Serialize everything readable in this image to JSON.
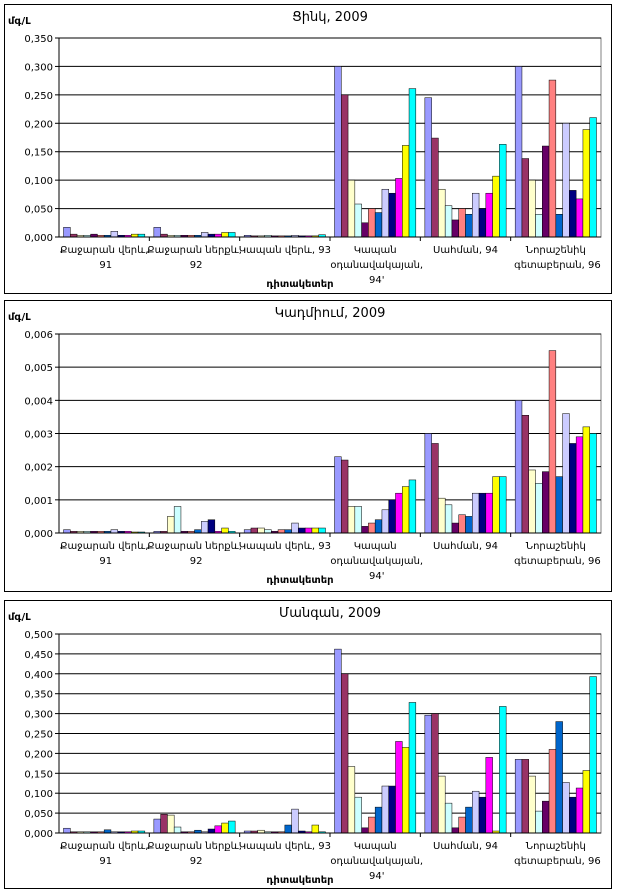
{
  "chart_data": [
    {
      "type": "bar",
      "title": "Ցինկ, 2009",
      "y_label": "մգ/Լ",
      "x_label": "դիտակետեր",
      "categories": [
        "Քաջարան վերև, 91",
        "Քաջարան ներքև, 92",
        "Կապան վերև, 93",
        "Կապան օդանավակայան, 94'",
        "Սահման, 94",
        "Նորաշենիկ գետաբերան, 96"
      ],
      "ylim": [
        0,
        0.35
      ],
      "yticks": [
        {
          "value": 0,
          "label": "0,000"
        },
        {
          "value": 0.05,
          "label": "0,050"
        },
        {
          "value": 0.1,
          "label": "0,100"
        },
        {
          "value": 0.15,
          "label": "0,150"
        },
        {
          "value": 0.2,
          "label": "0,200"
        },
        {
          "value": 0.25,
          "label": "0,250"
        },
        {
          "value": 0.3,
          "label": "0,300"
        },
        {
          "value": 0.35,
          "label": "0,350"
        }
      ],
      "grid": true,
      "series": [
        {
          "color": "#9999FF",
          "values": [
            0.017,
            0.017,
            0.003,
            0.3,
            0.245,
            0.3
          ]
        },
        {
          "color": "#993366",
          "values": [
            0.005,
            0.005,
            0.002,
            0.25,
            0.174,
            0.138
          ]
        },
        {
          "color": "#FFFFCC",
          "values": [
            0.003,
            0.003,
            0.002,
            0.1,
            0.084,
            0.1
          ]
        },
        {
          "color": "#CCFFFF",
          "values": [
            0.003,
            0.003,
            0.003,
            0.058,
            0.055,
            0.04
          ]
        },
        {
          "color": "#660066",
          "values": [
            0.005,
            0.003,
            0.002,
            0.025,
            0.03,
            0.16
          ]
        },
        {
          "color": "#FF8080",
          "values": [
            0.003,
            0.003,
            0.002,
            0.05,
            0.05,
            0.276
          ]
        },
        {
          "color": "#0066CC",
          "values": [
            0.003,
            0.003,
            0.002,
            0.043,
            0.04,
            0.04
          ]
        },
        {
          "color": "#CCCCFF",
          "values": [
            0.01,
            0.008,
            0.003,
            0.084,
            0.077,
            0.2
          ]
        },
        {
          "color": "#000080",
          "values": [
            0.003,
            0.005,
            0.002,
            0.077,
            0.05,
            0.082
          ]
        },
        {
          "color": "#FF00FF",
          "values": [
            0.003,
            0.005,
            0.002,
            0.103,
            0.077,
            0.067
          ]
        },
        {
          "color": "#FFFF00",
          "values": [
            0.005,
            0.008,
            0.002,
            0.161,
            0.107,
            0.189
          ]
        },
        {
          "color": "#00FFFF",
          "values": [
            0.005,
            0.008,
            0.004,
            0.261,
            0.163,
            0.21
          ]
        }
      ]
    },
    {
      "type": "bar",
      "title": "Կադմիում, 2009",
      "y_label": "մգ/Լ",
      "x_label": "դիտակետեր",
      "categories": [
        "Քաջարան վերև, 91",
        "Քաջարան ներքև, 92",
        "Կապան վերև, 93",
        "Կապան օդանավակայան, 94'",
        "Սահման, 94",
        "Նորաշենիկ գետաբերան, 96"
      ],
      "ylim": [
        0,
        0.006
      ],
      "yticks": [
        {
          "value": 0,
          "label": "0,000"
        },
        {
          "value": 0.001,
          "label": "0,001"
        },
        {
          "value": 0.002,
          "label": "0,002"
        },
        {
          "value": 0.003,
          "label": "0,003"
        },
        {
          "value": 0.004,
          "label": "0,004"
        },
        {
          "value": 0.005,
          "label": "0,005"
        },
        {
          "value": 0.006,
          "label": "0,006"
        }
      ],
      "grid": true,
      "series": [
        {
          "color": "#9999FF",
          "values": [
            0.0001,
            5e-05,
            0.0001,
            0.0023,
            0.003,
            0.004
          ]
        },
        {
          "color": "#993366",
          "values": [
            5e-05,
            5e-05,
            0.00015,
            0.0022,
            0.0027,
            0.00355
          ]
        },
        {
          "color": "#FFFFCC",
          "values": [
            5e-05,
            0.0005,
            0.00015,
            0.0008,
            0.00105,
            0.0019
          ]
        },
        {
          "color": "#CCFFFF",
          "values": [
            5e-05,
            0.0008,
            0.0001,
            0.0008,
            0.00085,
            0.0015
          ]
        },
        {
          "color": "#660066",
          "values": [
            5e-05,
            5e-05,
            5e-05,
            0.0002,
            0.0003,
            0.00185
          ]
        },
        {
          "color": "#FF8080",
          "values": [
            5e-05,
            5e-05,
            0.0001,
            0.0003,
            0.00055,
            0.0055
          ]
        },
        {
          "color": "#0066CC",
          "values": [
            5e-05,
            0.0001,
            0.0001,
            0.0004,
            0.0005,
            0.0017
          ]
        },
        {
          "color": "#CCCCFF",
          "values": [
            0.0001,
            0.00035,
            0.0003,
            0.0007,
            0.0012,
            0.0036
          ]
        },
        {
          "color": "#000080",
          "values": [
            5e-05,
            0.0004,
            0.00015,
            0.001,
            0.0012,
            0.0027
          ]
        },
        {
          "color": "#FF00FF",
          "values": [
            5e-05,
            5e-05,
            0.00015,
            0.0012,
            0.0012,
            0.0029
          ]
        },
        {
          "color": "#FFFF00",
          "values": [
            3e-05,
            0.00015,
            0.00015,
            0.0014,
            0.0017,
            0.0032
          ]
        },
        {
          "color": "#00FFFF",
          "values": [
            3e-05,
            5e-05,
            0.00015,
            0.0016,
            0.0017,
            0.003
          ]
        }
      ]
    },
    {
      "type": "bar",
      "title": "Մանգան, 2009",
      "y_label": "մգ/Լ",
      "x_label": "դիտակետեր",
      "categories": [
        "Քաջարան վերև, 91",
        "Քաջարան ներքև, 92",
        "Կապան վերև, 93",
        "Կապան օդանավակայան, 94'",
        "Սահման, 94",
        "Նորաշենիկ գետաբերան, 96"
      ],
      "ylim": [
        0,
        0.5
      ],
      "yticks": [
        {
          "value": 0,
          "label": "0,000"
        },
        {
          "value": 0.05,
          "label": "0,050"
        },
        {
          "value": 0.1,
          "label": "0,100"
        },
        {
          "value": 0.15,
          "label": "0,150"
        },
        {
          "value": 0.2,
          "label": "0,200"
        },
        {
          "value": 0.25,
          "label": "0,250"
        },
        {
          "value": 0.3,
          "label": "0,300"
        },
        {
          "value": 0.35,
          "label": "0,350"
        },
        {
          "value": 0.4,
          "label": "0,400"
        },
        {
          "value": 0.45,
          "label": "0,450"
        },
        {
          "value": 0.5,
          "label": "0,500"
        }
      ],
      "grid": true,
      "series": [
        {
          "color": "#9999FF",
          "values": [
            0.012,
            0.035,
            0.005,
            0.462,
            0.296,
            0.185
          ]
        },
        {
          "color": "#993366",
          "values": [
            0.003,
            0.047,
            0.005,
            0.4,
            0.3,
            0.185
          ]
        },
        {
          "color": "#FFFFCC",
          "values": [
            0.003,
            0.045,
            0.007,
            0.167,
            0.143,
            0.143
          ]
        },
        {
          "color": "#CCFFFF",
          "values": [
            0.003,
            0.015,
            0.003,
            0.09,
            0.075,
            0.055
          ]
        },
        {
          "color": "#660066",
          "values": [
            0.003,
            0.003,
            0.003,
            0.013,
            0.013,
            0.08
          ]
        },
        {
          "color": "#FF8080",
          "values": [
            0.003,
            0.003,
            0.003,
            0.04,
            0.04,
            0.21
          ]
        },
        {
          "color": "#0066CC",
          "values": [
            0.008,
            0.007,
            0.02,
            0.065,
            0.065,
            0.28
          ]
        },
        {
          "color": "#CCCCFF",
          "values": [
            0.003,
            0.003,
            0.06,
            0.118,
            0.105,
            0.127
          ]
        },
        {
          "color": "#000080",
          "values": [
            0.003,
            0.01,
            0.005,
            0.118,
            0.09,
            0.09
          ]
        },
        {
          "color": "#FF00FF",
          "values": [
            0.003,
            0.018,
            0.003,
            0.23,
            0.19,
            0.113
          ]
        },
        {
          "color": "#FFFF00",
          "values": [
            0.005,
            0.025,
            0.02,
            0.215,
            0.005,
            0.157
          ]
        },
        {
          "color": "#00FFFF",
          "values": [
            0.005,
            0.03,
            0.003,
            0.328,
            0.318,
            0.393
          ]
        }
      ]
    }
  ]
}
